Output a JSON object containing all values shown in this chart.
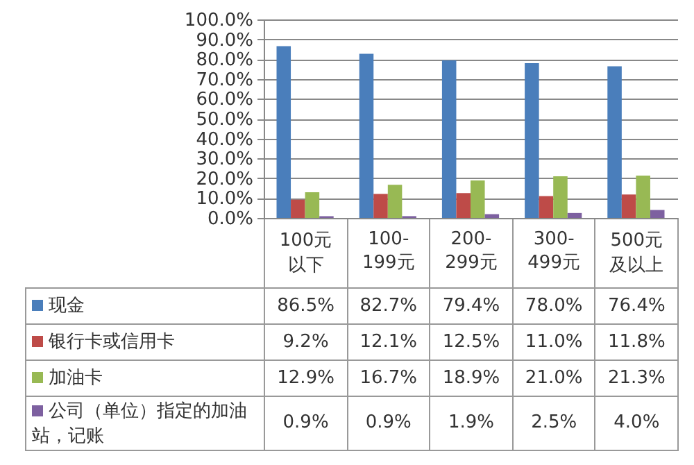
{
  "chart_data": {
    "type": "bar",
    "categories": [
      "100元以下",
      "100-199元",
      "200-299元",
      "300-499元",
      "500元及以上"
    ],
    "series": [
      {
        "name": "现金",
        "color": "#4a7ebb",
        "values": [
          86.5,
          82.7,
          79.4,
          78.0,
          76.4
        ],
        "value_labels": [
          "86.5%",
          "82.7%",
          "79.4%",
          "78.0%",
          "76.4%"
        ]
      },
      {
        "name": "银行卡或信用卡",
        "color": "#be4b48",
        "values": [
          9.2,
          12.1,
          12.5,
          11.0,
          11.8
        ],
        "value_labels": [
          "9.2%",
          "12.1%",
          "12.5%",
          "11.0%",
          "11.8%"
        ]
      },
      {
        "name": "加油卡",
        "color": "#98b954",
        "values": [
          12.9,
          16.7,
          18.9,
          21.0,
          21.3
        ],
        "value_labels": [
          "12.9%",
          "16.7%",
          "18.9%",
          "21.0%",
          "21.3%"
        ]
      },
      {
        "name": "公司（单位）指定的加油站，记账",
        "color": "#7d60a0",
        "values": [
          0.9,
          0.9,
          1.9,
          2.5,
          4.0
        ],
        "value_labels": [
          "0.9%",
          "0.9%",
          "1.9%",
          "2.5%",
          "4.0%"
        ]
      }
    ],
    "ylim": [
      0,
      100
    ],
    "yticks": [
      {
        "value": 0,
        "label": "0.0%"
      },
      {
        "value": 10,
        "label": "10.0%"
      },
      {
        "value": 20,
        "label": "20.0%"
      },
      {
        "value": 30,
        "label": "30.0%"
      },
      {
        "value": 40,
        "label": "40.0%"
      },
      {
        "value": 50,
        "label": "50.0%"
      },
      {
        "value": 60,
        "label": "60.0%"
      },
      {
        "value": 70,
        "label": "70.0%"
      },
      {
        "value": 80,
        "label": "80.0%"
      },
      {
        "value": 90,
        "label": "90.0%"
      },
      {
        "value": 100,
        "label": "100.0%"
      }
    ],
    "grid": "y",
    "legend": "bottom"
  }
}
